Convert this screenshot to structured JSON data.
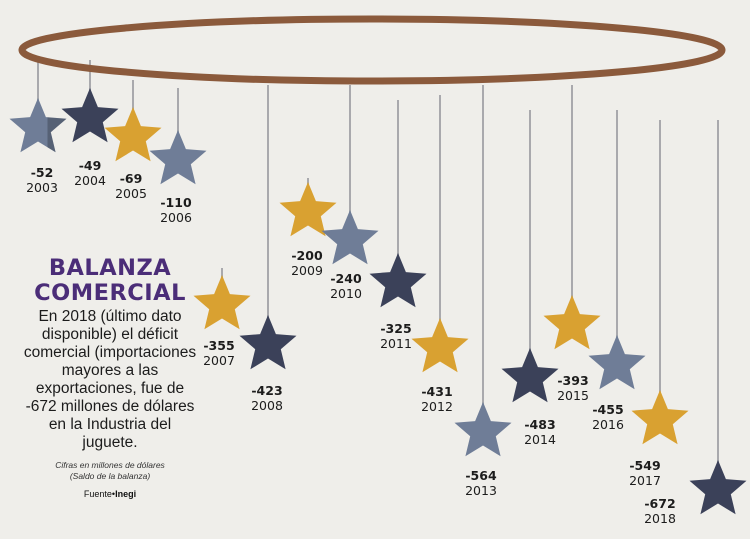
{
  "chart_data": {
    "type": "pictogram",
    "title": "BALANZA COMERCIAL",
    "categories": [
      "2003",
      "2004",
      "2005",
      "2006",
      "2007",
      "2008",
      "2009",
      "2010",
      "2011",
      "2012",
      "2013",
      "2014",
      "2015",
      "2016",
      "2017",
      "2018"
    ],
    "values": [
      -52,
      -49,
      -69,
      -110,
      -355,
      -423,
      -200,
      -240,
      -325,
      -431,
      -564,
      -483,
      -393,
      -455,
      -549,
      -672
    ],
    "value_labels": [
      "-52",
      "-49",
      "-69",
      "-110",
      "-355",
      "-423",
      "-200",
      "-240",
      "-325",
      "-431",
      "-564",
      "-483",
      "-393",
      "-455",
      "-549",
      "-672"
    ],
    "star_types": [
      "light",
      "dark",
      "gold",
      "light",
      "gold",
      "dark",
      "gold",
      "light",
      "dark",
      "gold",
      "light",
      "dark",
      "gold",
      "light",
      "gold",
      "dark"
    ],
    "unit": "Cifras en millones de dólares",
    "colors": {
      "light": "#6f7d97",
      "dark": "#3b4159",
      "gold": "#d9a131",
      "ring": "#8b5a3c",
      "title": "#4b2d78"
    }
  },
  "text": {
    "title_line1": "BALANZA",
    "title_line2": "COMERCIAL",
    "body": "En 2018 (último dato disponible) el déficit comercial (importaciones mayores a las exportaciones, fue de -672 millones de dólares en la Industria del juguete.",
    "note_line1": "Cifras en millones de dólares",
    "note_line2": "(Saldo de la balanza)",
    "source_label": "Fuente•",
    "source_name": "Inegi"
  }
}
